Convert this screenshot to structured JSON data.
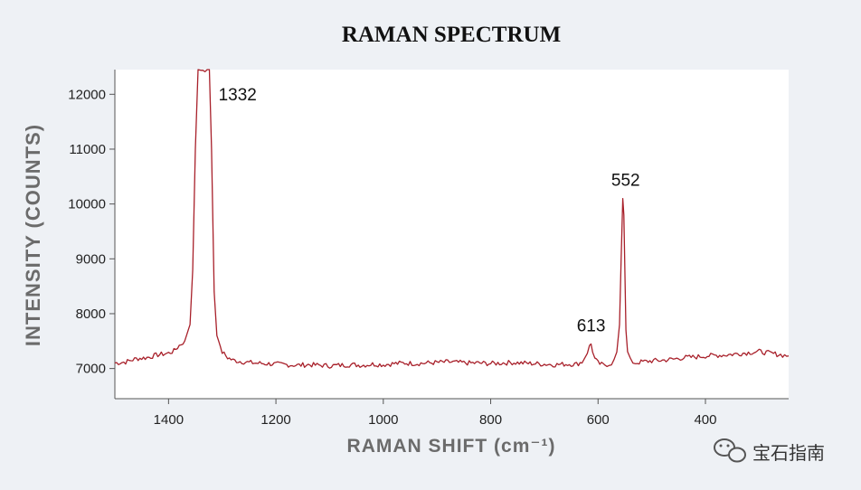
{
  "chart_data": {
    "type": "line",
    "title": "RAMAN SPECTRUM",
    "xlabel": "RAMAN SHIFT (cm⁻¹)",
    "ylabel": "INTENSITY (COUNTS)",
    "xlim": [
      1500,
      245
    ],
    "ylim": [
      6450,
      12450
    ],
    "x_reversed": true,
    "grid": false,
    "x_ticks": [
      1400,
      1200,
      1000,
      800,
      600,
      400
    ],
    "y_ticks": [
      7000,
      8000,
      9000,
      10000,
      11000,
      12000
    ],
    "line_color": "#a8202a",
    "annotations": [
      {
        "text": "1332",
        "x": 1332,
        "y": 12450
      },
      {
        "text": "613",
        "x": 613,
        "y": 7450
      },
      {
        "text": "552",
        "x": 552,
        "y": 10100
      }
    ],
    "series": [
      {
        "x": [
          1500,
          1480,
          1460,
          1440,
          1420,
          1400,
          1390,
          1380,
          1370,
          1360,
          1355,
          1350,
          1345,
          1340,
          1336,
          1332,
          1328,
          1324,
          1320,
          1315,
          1310,
          1300,
          1290,
          1280,
          1260,
          1240,
          1220,
          1200,
          1180,
          1160,
          1140,
          1120,
          1100,
          1080,
          1060,
          1040,
          1020,
          1000,
          980,
          960,
          940,
          920,
          900,
          880,
          860,
          840,
          820,
          800,
          780,
          760,
          740,
          720,
          700,
          680,
          660,
          640,
          630,
          625,
          620,
          616,
          613,
          610,
          606,
          600,
          590,
          580,
          575,
          570,
          565,
          560,
          557,
          554,
          552,
          550,
          548,
          545,
          540,
          535,
          530,
          520,
          500,
          480,
          460,
          440,
          420,
          400,
          380,
          360,
          340,
          320,
          300,
          280,
          260,
          245
        ],
        "y": [
          7100,
          7120,
          7180,
          7200,
          7250,
          7280,
          7320,
          7420,
          7500,
          7800,
          8800,
          11000,
          12450,
          12450,
          12450,
          12450,
          12450,
          12450,
          11000,
          8400,
          7600,
          7300,
          7200,
          7150,
          7120,
          7100,
          7090,
          7080,
          7070,
          7060,
          7070,
          7060,
          7050,
          7060,
          7070,
          7060,
          7080,
          7070,
          7090,
          7100,
          7090,
          7100,
          7110,
          7120,
          7110,
          7100,
          7100,
          7090,
          7100,
          7110,
          7100,
          7090,
          7080,
          7070,
          7080,
          7080,
          7120,
          7200,
          7300,
          7400,
          7450,
          7320,
          7180,
          7100,
          7060,
          7080,
          7100,
          7150,
          7300,
          7800,
          9000,
          10100,
          9800,
          8800,
          7700,
          7300,
          7150,
          7120,
          7100,
          7120,
          7140,
          7150,
          7170,
          7200,
          7210,
          7230,
          7240,
          7250,
          7270,
          7290,
          7310,
          7280,
          7250,
          7230
        ]
      }
    ]
  },
  "watermark": {
    "text": "宝石指南",
    "icon": "wechat-icon"
  }
}
